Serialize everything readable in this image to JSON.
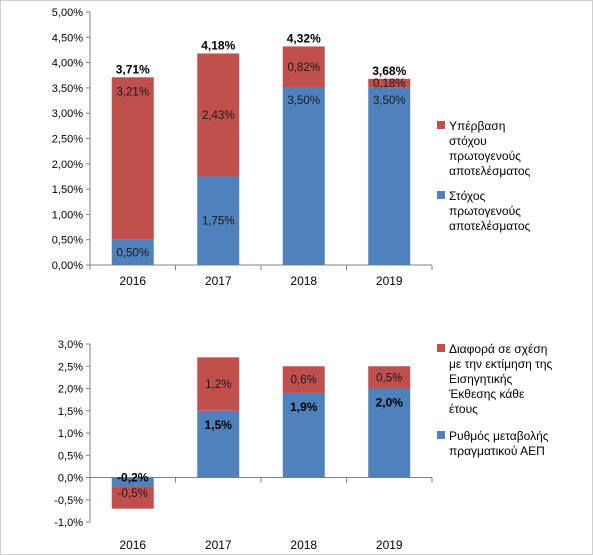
{
  "chart_data": [
    {
      "type": "bar",
      "stacked": true,
      "categories": [
        "2016",
        "2017",
        "2018",
        "2019"
      ],
      "ylim": [
        0,
        5
      ],
      "ytick_step": 0.5,
      "ytick_labels": [
        "0,00%",
        "0,50%",
        "1,00%",
        "1,50%",
        "2,00%",
        "2,50%",
        "3,00%",
        "3,50%",
        "4,00%",
        "4,50%",
        "5,00%"
      ],
      "grid": false,
      "legend": "right",
      "series": [
        {
          "name": "Στόχος πρωτογενούς αποτελέσματος",
          "legend_lines": [
            "Στόχος",
            "πρωτογενούς",
            "αποτελέσματος"
          ],
          "color": "#4f81bd",
          "values": [
            0.5,
            1.75,
            3.5,
            3.5
          ],
          "labels": [
            "0,50%",
            "1,75%",
            "3,50%",
            "3,50%"
          ]
        },
        {
          "name": "Υπέρβαση στόχου πρωτογενούς αποτελέσματος",
          "legend_lines": [
            "Υπέρβαση",
            "στόχου",
            "πρωτογενούς",
            "αποτελέσματος"
          ],
          "color": "#c0504d",
          "values": [
            3.21,
            2.43,
            0.82,
            0.18
          ],
          "labels": [
            "3,21%",
            "2,43%",
            "0,82%",
            "0,18%"
          ]
        }
      ],
      "totals": [
        3.71,
        4.18,
        4.32,
        3.68
      ],
      "total_labels": [
        "3,71%",
        "4,18%",
        "4,32%",
        "3,68%"
      ]
    },
    {
      "type": "bar",
      "stacked": true,
      "categories": [
        "2016",
        "2017",
        "2018",
        "2019"
      ],
      "ylim": [
        -1,
        3
      ],
      "ytick_step": 0.5,
      "ytick_labels": [
        "-1,0%",
        "-0,5%",
        "0,0%",
        "0,5%",
        "1,0%",
        "1,5%",
        "2,0%",
        "2,5%",
        "3,0%"
      ],
      "grid": false,
      "legend": "right",
      "series": [
        {
          "name": "Ρυθμός μεταβολής πραγματικού ΑΕΠ",
          "legend_lines": [
            "Ρυθμός μεταβολής",
            "πραγματικού ΑΕΠ"
          ],
          "color": "#4f81bd",
          "values": [
            -0.2,
            1.5,
            1.9,
            2.0
          ],
          "labels": [
            "-0,2%",
            "1,5%",
            "1,9%",
            "2,0%"
          ]
        },
        {
          "name": "Διαφορά σε σχέση με την εκτίμηση της Εισηγητικής Έκθεσης κάθε έτους",
          "legend_lines": [
            "Διαφορά σε σχέση",
            "με την εκτίμηση της",
            "Εισηγητικής",
            "Έκθεσης κάθε",
            "έτους"
          ],
          "color": "#c0504d",
          "values": [
            -0.5,
            1.2,
            0.6,
            0.5
          ],
          "labels": [
            "-0,5%",
            "1,2%",
            "0,6%",
            "0,5%"
          ]
        }
      ]
    }
  ]
}
